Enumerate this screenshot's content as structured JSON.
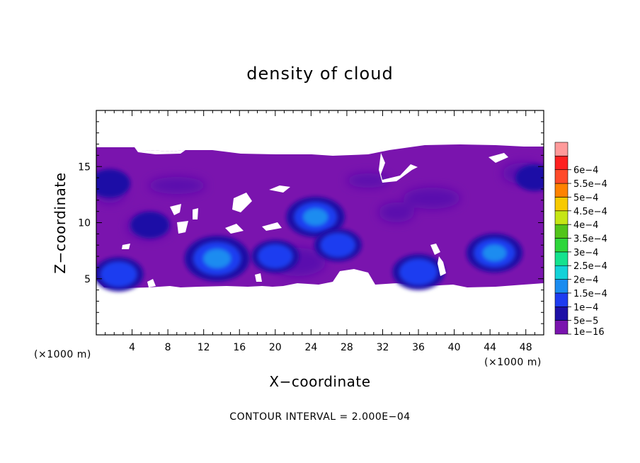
{
  "chart_data": {
    "type": "heatmap",
    "title": "density of cloud",
    "xlabel": "X−coordinate",
    "ylabel": "Z−coordinate",
    "x_unit": "(×1000 m)",
    "x_unit_right": "(×1000 m)",
    "xlim": [
      0,
      50
    ],
    "ylim": [
      0,
      20
    ],
    "x_ticks": [
      4,
      8,
      12,
      16,
      20,
      24,
      28,
      32,
      36,
      40,
      44,
      48
    ],
    "y_ticks": [
      5,
      10,
      15
    ],
    "footnote": "CONTOUR INTERVAL = 2.000E−04",
    "colorbar": {
      "levels": [
        "1e−16",
        "5e−5",
        "1e−4",
        "1.5e−4",
        "2e−4",
        "2.5e−4",
        "3e−4",
        "3.5e−4",
        "4e−4",
        "4.5e−4",
        "5e−4",
        "5.5e−4",
        "6e−4"
      ],
      "colors": [
        "#7a14ae",
        "#1d10a6",
        "#1e3cf0",
        "#1a8cf0",
        "#13d2d8",
        "#14e28e",
        "#2ed63a",
        "#52c41a",
        "#c6e614",
        "#f7ca00",
        "#ff8200",
        "#ff4a2a",
        "#ff2020",
        "#ff9a9a"
      ]
    },
    "cloud_layer": {
      "z_bottom": 4.4,
      "z_top": 16.6
    },
    "cores": [
      {
        "x": 13.5,
        "z": 6.8,
        "value": 0.00018
      },
      {
        "x": 24.5,
        "z": 10.5,
        "value": 0.00015
      },
      {
        "x": 44.5,
        "z": 7.3,
        "value": 0.00014
      },
      {
        "x": 36,
        "z": 5.6,
        "value": 0.00012
      },
      {
        "x": 2.5,
        "z": 5.4,
        "value": 0.00011
      },
      {
        "x": 20,
        "z": 7,
        "value": 0.0001
      },
      {
        "x": 27,
        "z": 8,
        "value": 0.0001
      },
      {
        "x": 1.5,
        "z": 13.5,
        "value": 7e-05
      },
      {
        "x": 6,
        "z": 9.8,
        "value": 6e-05
      },
      {
        "x": 49,
        "z": 14,
        "value": 6e-05
      }
    ]
  }
}
